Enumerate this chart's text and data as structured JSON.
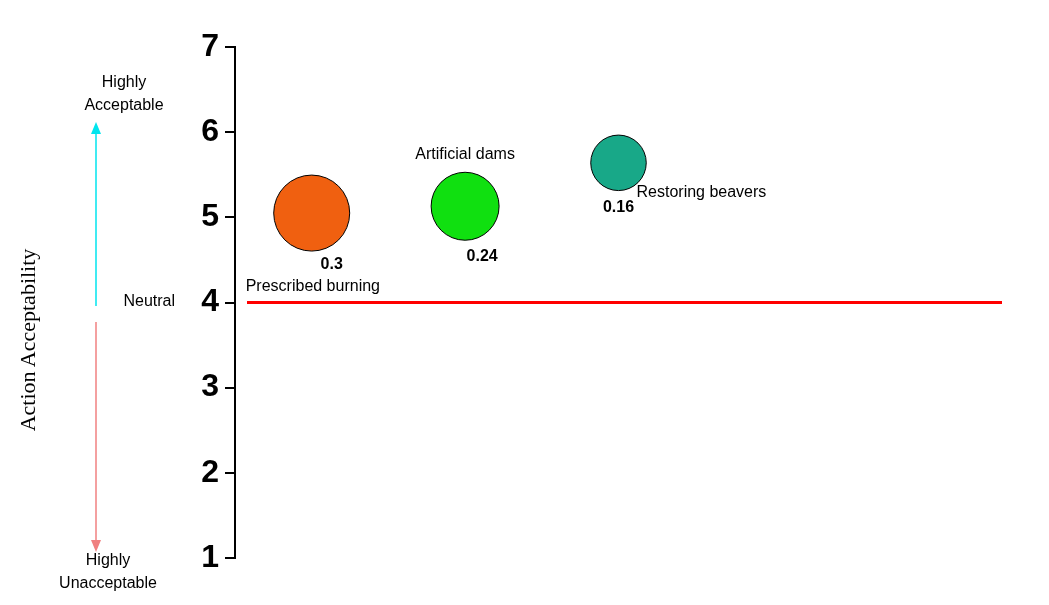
{
  "chart_data": {
    "type": "bubble",
    "categories": [
      null,
      null,
      null,
      null,
      null
    ],
    "series": [
      {
        "name": "Prescribed burning",
        "color": "#f06010",
        "values": [
          5.05,
          null,
          null,
          null,
          null
        ],
        "sizes": [
          0.3,
          null,
          null,
          null,
          null
        ],
        "value_labels": [
          "0.3",
          null,
          null,
          null,
          null
        ]
      },
      {
        "name": "Artificial dams",
        "color": "#10e010",
        "values": [
          null,
          5.13,
          null,
          null,
          null
        ],
        "sizes": [
          null,
          0.24,
          null,
          null,
          null
        ],
        "value_labels": [
          null,
          "0.24",
          null,
          null,
          null
        ]
      },
      {
        "name": "Restoring beavers",
        "color": "#18a888",
        "values": [
          null,
          null,
          5.64,
          null,
          null
        ],
        "sizes": [
          null,
          null,
          0.16,
          null,
          null
        ],
        "value_labels": [
          null,
          null,
          "0.16",
          null,
          null
        ]
      }
    ],
    "ylim": [
      1,
      7
    ],
    "yticks": [
      1,
      2,
      3,
      4,
      5,
      6,
      7
    ],
    "grid": false,
    "legend": false,
    "ref_lines": [
      {
        "axis": "y",
        "value": 4,
        "color": "#ff0000"
      }
    ],
    "annotations": [
      "Action Acceptability",
      "Highly Acceptable",
      "Neutral",
      "Highly Unacceptable"
    ]
  }
}
